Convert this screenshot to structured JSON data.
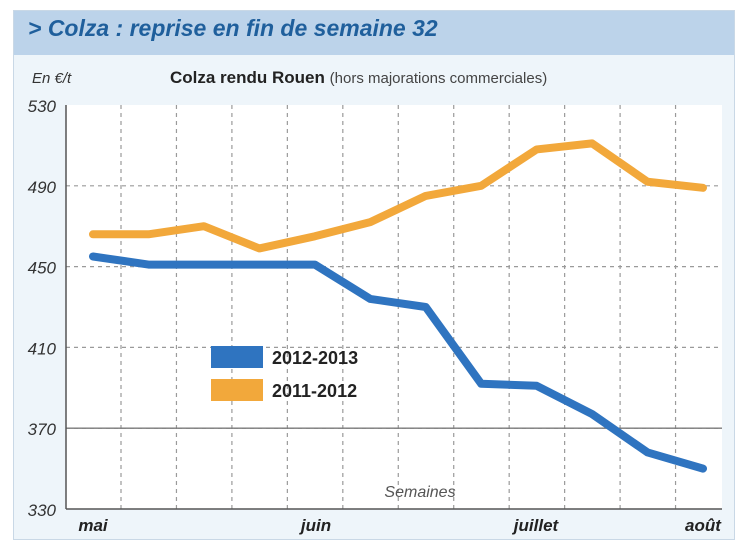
{
  "header": {
    "title": "> Colza : reprise en fin de semaine 32"
  },
  "chart_header": {
    "unit": "En €/t",
    "title_main": "Colza rendu Rouen",
    "title_sub": "(hors majorations commerciales)"
  },
  "chart_data": {
    "type": "line",
    "title": "Colza rendu Rouen",
    "subtitle": "(hors majorations commerciales)",
    "ylabel": "En €/t",
    "xlabel": "Semaines",
    "ylim": [
      330,
      530
    ],
    "yticks": [
      330,
      370,
      410,
      450,
      490,
      530
    ],
    "xticks": [
      "mai",
      "juin",
      "juillet",
      "août"
    ],
    "grid": true,
    "legend": "center",
    "x": [
      0,
      1,
      2,
      3,
      4,
      5,
      6,
      7,
      8,
      9,
      10,
      11
    ],
    "series": [
      {
        "name": "2012-2013",
        "color": "#2f74c0",
        "values": [
          455,
          451,
          451,
          451,
          451,
          434,
          430,
          392,
          391,
          377,
          358,
          350
        ]
      },
      {
        "name": "2011-2012",
        "color": "#f2a83b",
        "values": [
          466,
          466,
          470,
          459,
          465,
          472,
          485,
          490,
          508,
          511,
          492,
          489
        ]
      }
    ]
  }
}
